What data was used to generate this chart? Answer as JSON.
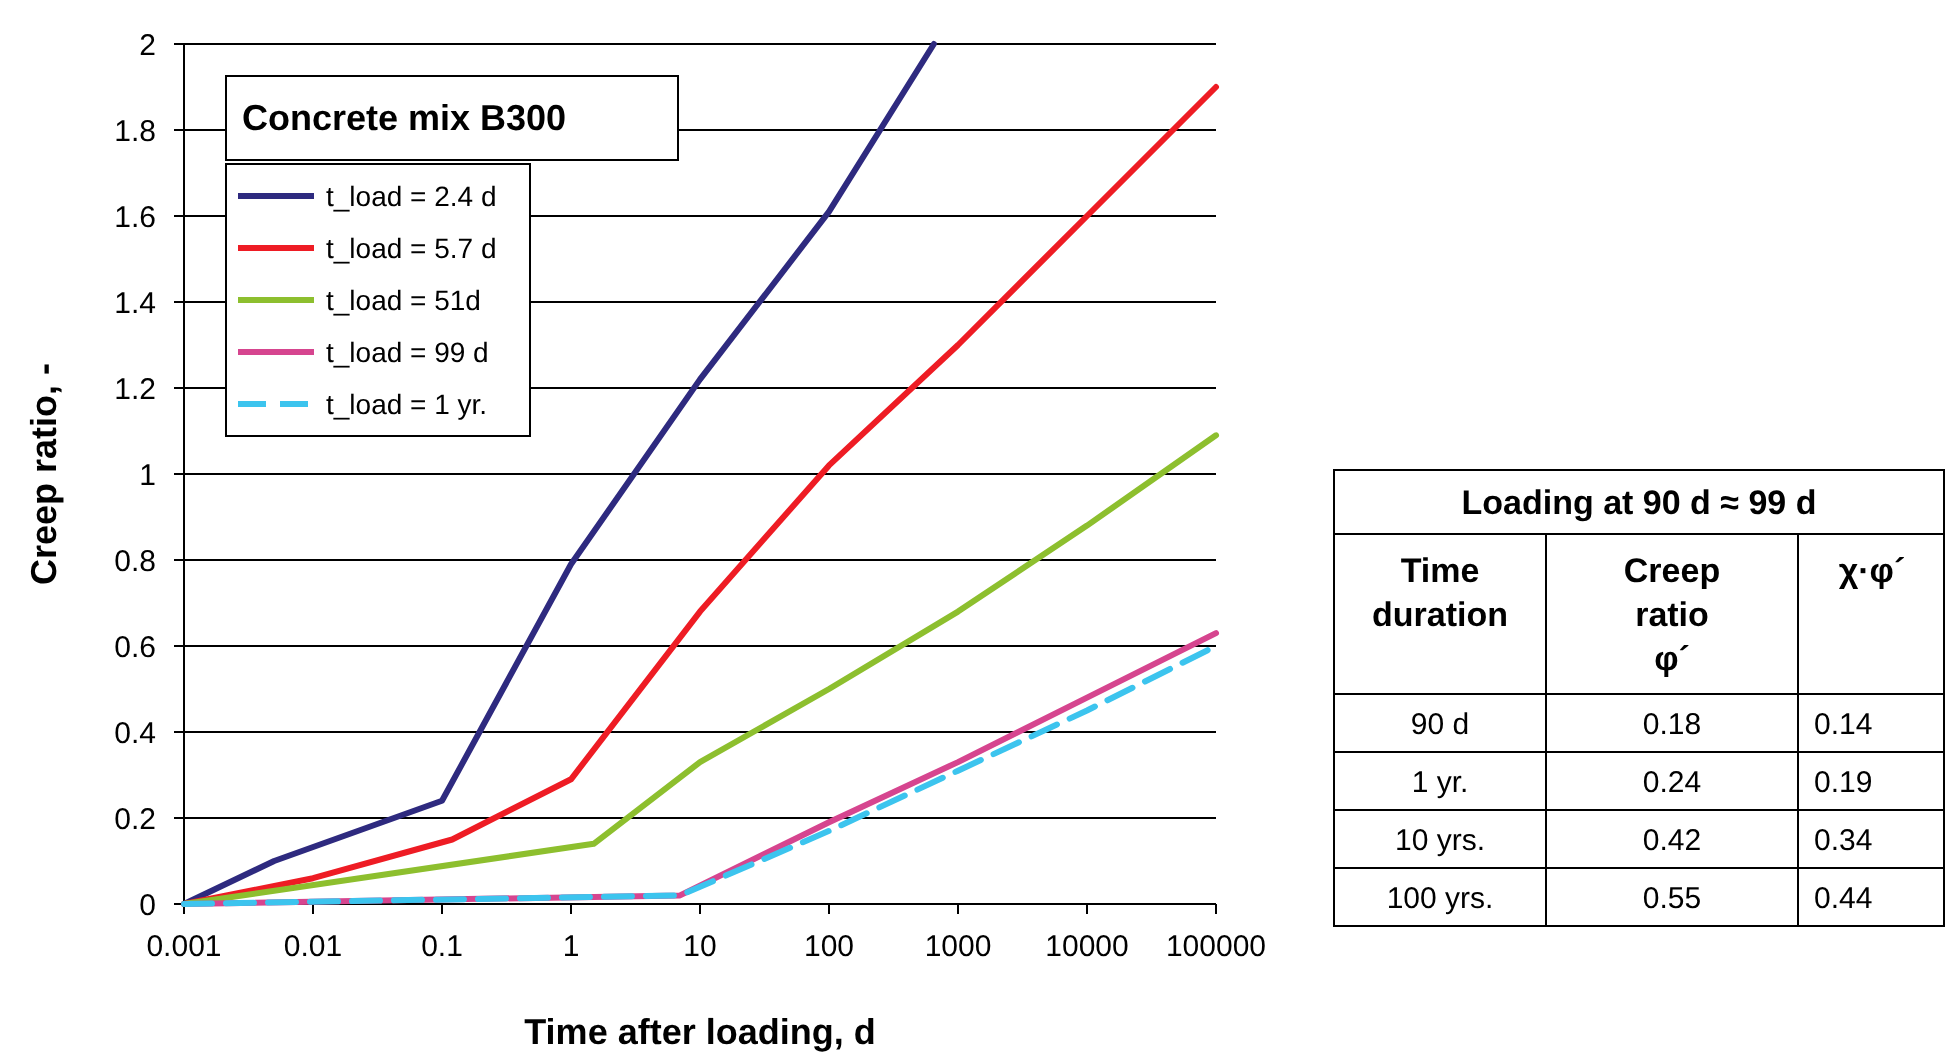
{
  "chart_data": [
    {
      "type": "line",
      "xlabel": "Time after loading, d",
      "ylabel": "Creep ratio, -",
      "legend_title": "Concrete mix B300",
      "log": "x",
      "grid": "y",
      "legend": "top left",
      "xlim": [
        0.001,
        100000
      ],
      "xticks": [
        0.001,
        0.01,
        0.1,
        1,
        10,
        100,
        1000,
        10000,
        100000
      ],
      "ylim": [
        0,
        2
      ],
      "yticks": [
        0,
        0.2,
        0.4,
        0.6,
        0.8,
        1,
        1.2,
        1.4,
        1.6,
        1.8,
        2
      ],
      "series": [
        {
          "name": "t_load = 2.4 d",
          "color": "#2e2a7f",
          "x": [
            0.001,
            0.005,
            0.1,
            1,
            10,
            100,
            650
          ],
          "values": [
            0,
            0.1,
            0.24,
            0.79,
            1.22,
            1.61,
            2
          ]
        },
        {
          "name": "t_load = 5.7 d",
          "color": "#ee1c24",
          "x": [
            0.001,
            0.01,
            0.12,
            1,
            10,
            100,
            1000,
            10000,
            100000
          ],
          "values": [
            0,
            0.06,
            0.15,
            0.29,
            0.68,
            1.02,
            1.3,
            1.6,
            1.9
          ]
        },
        {
          "name": "t_load = 51d",
          "color": "#8dbf2e",
          "x": [
            0.001,
            1.5,
            10,
            100,
            1000,
            10000,
            100000
          ],
          "values": [
            0,
            0.14,
            0.33,
            0.5,
            0.68,
            0.88,
            1.09
          ]
        },
        {
          "name": "t_load = 99 d",
          "color": "#d6458f",
          "x": [
            0.001,
            7,
            100,
            1000,
            10000,
            100000
          ],
          "values": [
            0,
            0.02,
            0.19,
            0.33,
            0.48,
            0.63
          ]
        },
        {
          "name": "t_load = 1 yr.",
          "color": "#3cc4ee",
          "line_style": "dashed",
          "x": [
            0.001,
            7,
            100,
            1000,
            10000,
            100000
          ],
          "values": [
            0,
            0.02,
            0.17,
            0.31,
            0.45,
            0.6
          ]
        }
      ]
    },
    {
      "type": "other",
      "title": "Loading at 90 d ≈ 99 d",
      "annotations": [
        "Time duration",
        "Creep ratio φ´",
        "χ·φ´",
        "90 d",
        "0.18",
        "0.14",
        "1 yr.",
        "0.24",
        "0.19",
        "10 yrs.",
        "0.42",
        "0.34",
        "100 yrs.",
        "0.55",
        "0.44"
      ]
    }
  ]
}
